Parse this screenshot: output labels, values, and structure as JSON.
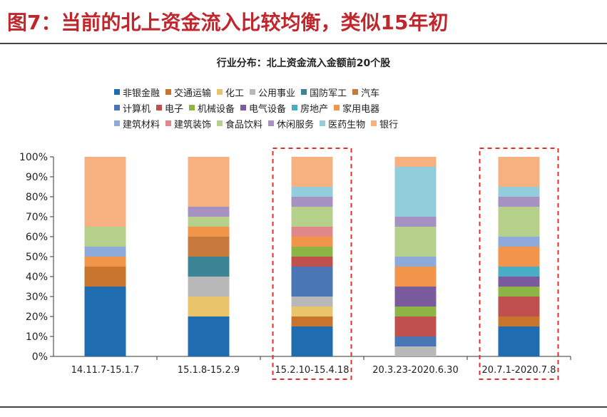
{
  "figure_title": "图7：当前的北上资金流入比较均衡，类似15年初",
  "chart_data": {
    "type": "bar",
    "stacked": true,
    "title": "行业分布：北上资金流入金额前20个股",
    "xlabel": "",
    "ylabel": "",
    "ylim": [
      0,
      100
    ],
    "y_ticks": [
      "0%",
      "10%",
      "20%",
      "30%",
      "40%",
      "50%",
      "60%",
      "70%",
      "80%",
      "90%",
      "100%"
    ],
    "categories": [
      "14.11.7-15.1.7",
      "15.1.8-15.2.9",
      "15.2.10-15.4.18",
      "20.3.23-2020.6.30",
      "20.7.1-2020.7.8"
    ],
    "highlighted_categories": [
      "15.2.10-15.4.18",
      "20.7.1-2020.7.8"
    ],
    "legend_rows": [
      [
        "非银金融",
        "交通运输",
        "化工",
        "公用事业",
        "国防军工",
        "汽车"
      ],
      [
        "计算机",
        "电子",
        "机械设备",
        "电气设备",
        "房地产",
        "家用电器"
      ],
      [
        "建筑材料",
        "建筑装饰",
        "食品饮料",
        "休闲服务",
        "医药生物",
        "银行"
      ]
    ],
    "series": [
      {
        "name": "非银金融",
        "color": "#1f6db0",
        "values": [
          35,
          20,
          15,
          0,
          15
        ]
      },
      {
        "name": "交通运输",
        "color": "#c9742d",
        "values": [
          10,
          0,
          5,
          0,
          5
        ]
      },
      {
        "name": "化工",
        "color": "#e9c46a",
        "values": [
          0,
          10,
          5,
          0,
          0
        ]
      },
      {
        "name": "公用事业",
        "color": "#b8b8b8",
        "values": [
          0,
          10,
          5,
          5,
          0
        ]
      },
      {
        "name": "国防军工",
        "color": "#3b8496",
        "values": [
          0,
          10,
          0,
          0,
          0
        ]
      },
      {
        "name": "汽车",
        "color": "#c67a3c",
        "values": [
          0,
          10,
          0,
          0,
          0
        ]
      },
      {
        "name": "计算机",
        "color": "#4a76b5",
        "values": [
          0,
          0,
          15,
          5,
          0
        ]
      },
      {
        "name": "电子",
        "color": "#c0504d",
        "values": [
          0,
          0,
          5,
          10,
          10
        ]
      },
      {
        "name": "机械设备",
        "color": "#8cb545",
        "values": [
          0,
          0,
          5,
          5,
          5
        ]
      },
      {
        "name": "电气设备",
        "color": "#7a5c9e",
        "values": [
          0,
          0,
          0,
          10,
          5
        ]
      },
      {
        "name": "房地产",
        "color": "#4bacc6",
        "values": [
          0,
          0,
          0,
          0,
          5
        ]
      },
      {
        "name": "家用电器",
        "color": "#f0954a",
        "values": [
          5,
          5,
          5,
          10,
          10
        ]
      },
      {
        "name": "建筑材料",
        "color": "#8eaadb",
        "values": [
          5,
          0,
          0,
          5,
          5
        ]
      },
      {
        "name": "建筑装饰",
        "color": "#e0888a",
        "values": [
          0,
          0,
          5,
          0,
          0
        ]
      },
      {
        "name": "食品饮料",
        "color": "#b5d08a",
        "values": [
          10,
          5,
          10,
          15,
          15
        ]
      },
      {
        "name": "休闲服务",
        "color": "#a591c2",
        "values": [
          0,
          5,
          5,
          5,
          5
        ]
      },
      {
        "name": "医药生物",
        "color": "#92cddc",
        "values": [
          0,
          0,
          5,
          25,
          5
        ]
      },
      {
        "name": "银行",
        "color": "#f7b07f",
        "values": [
          35,
          25,
          15,
          5,
          15
        ]
      }
    ]
  }
}
